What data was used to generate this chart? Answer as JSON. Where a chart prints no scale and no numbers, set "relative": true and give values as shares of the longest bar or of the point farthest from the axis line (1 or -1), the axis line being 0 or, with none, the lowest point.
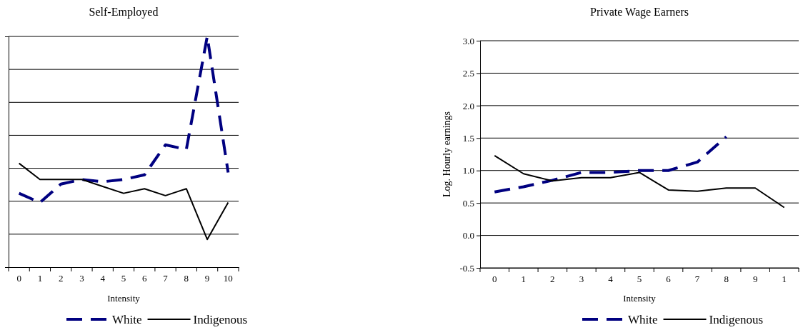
{
  "chart_data": [
    {
      "type": "line",
      "title": "Self-Employed",
      "xlabel": "Intensity",
      "relative": true,
      "grid": "y",
      "legend": "bottom",
      "tick_labels": "x",
      "categories": [
        "0",
        "1",
        "2",
        "3",
        "4",
        "5",
        "6",
        "7",
        "8",
        "9",
        "10"
      ],
      "series": [
        {
          "name": "White",
          "color": "#000080",
          "line_style": "dashed",
          "values": [
            0.32,
            0.28,
            0.36,
            0.38,
            0.37,
            0.38,
            0.4,
            0.53,
            0.51,
            1,
            0.41
          ]
        },
        {
          "name": "Indigenous",
          "color": "#000000",
          "line_style": "solid",
          "values": [
            0.45,
            0.38,
            0.38,
            0.38,
            0.35,
            0.32,
            0.34,
            0.31,
            0.34,
            0.12,
            0.28
          ]
        }
      ]
    },
    {
      "type": "line",
      "title": "Private Wage Earners",
      "xlabel": "Intensity",
      "ylabel": "Log. Hourly earnings",
      "grid": "y",
      "legend": "bottom",
      "categories": [
        "0",
        "1",
        "2",
        "3",
        "4",
        "5",
        "6",
        "7",
        "8",
        "9",
        "1"
      ],
      "ylim": [
        -0.5,
        3.0
      ],
      "yticks": [
        {
          "value": -0.5,
          "label": "-0.5"
        },
        {
          "value": 0,
          "label": "0.0"
        },
        {
          "value": 0.5,
          "label": "0.5"
        },
        {
          "value": 1,
          "label": "1.0"
        },
        {
          "value": 1.5,
          "label": "1.5"
        },
        {
          "value": 2,
          "label": "2.0"
        },
        {
          "value": 2.5,
          "label": "2.5"
        },
        {
          "value": 3,
          "label": "3.0"
        }
      ],
      "series": [
        {
          "name": "White",
          "color": "#000080",
          "line_style": "dashed",
          "values": [
            0.67,
            0.75,
            0.85,
            0.97,
            0.97,
            1.0,
            1.0,
            1.13,
            1.52,
            null,
            null
          ]
        },
        {
          "name": "Indigenous",
          "color": "#000000",
          "line_style": "solid",
          "values": [
            1.23,
            0.95,
            0.84,
            0.89,
            0.89,
            0.97,
            0.7,
            0.68,
            0.73,
            0.73,
            0.43
          ]
        }
      ]
    }
  ]
}
